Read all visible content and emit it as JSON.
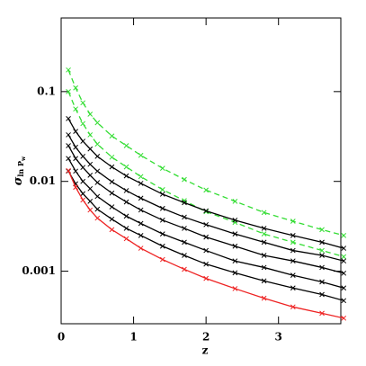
{
  "chart_data": {
    "type": "line",
    "xlabel": "z",
    "ylabel": "σ",
    "ylabel_sub": "ln P",
    "ylabel_subsub": "w",
    "log_y": true,
    "xlim": [
      0,
      3.86
    ],
    "xticks": [
      0,
      1,
      2,
      3
    ],
    "ylim": [
      0.00026,
      0.66
    ],
    "yticks": [
      0.001,
      0.01,
      0.1
    ],
    "x": [
      0.1,
      0.2,
      0.3,
      0.4,
      0.5,
      0.7,
      0.9,
      1.1,
      1.4,
      1.7,
      2.0,
      2.4,
      2.8,
      3.2,
      3.6,
      3.9
    ],
    "series": [
      {
        "color": "#33dd33",
        "linestyle": "dashed",
        "values": [
          0.174,
          0.11,
          0.075,
          0.056,
          0.045,
          0.032,
          0.025,
          0.0195,
          0.014,
          0.0105,
          0.008,
          0.006,
          0.0045,
          0.0036,
          0.0029,
          0.0025
        ]
      },
      {
        "color": "#33dd33",
        "linestyle": "dashed",
        "values": [
          0.1,
          0.064,
          0.044,
          0.033,
          0.026,
          0.0186,
          0.0145,
          0.0113,
          0.0081,
          0.0061,
          0.0046,
          0.0035,
          0.0026,
          0.0021,
          0.0017,
          0.00145
        ]
      },
      {
        "color": "#000000",
        "linestyle": "solid",
        "values": [
          0.05,
          0.036,
          0.028,
          0.023,
          0.019,
          0.0145,
          0.0115,
          0.0095,
          0.0072,
          0.0058,
          0.0047,
          0.0037,
          0.003,
          0.0025,
          0.0021,
          0.0018
        ]
      },
      {
        "color": "#000000",
        "linestyle": "solid",
        "values": [
          0.033,
          0.024,
          0.019,
          0.0155,
          0.013,
          0.0099,
          0.0079,
          0.0065,
          0.005,
          0.004,
          0.0033,
          0.0026,
          0.0021,
          0.0017,
          0.0015,
          0.0013
        ]
      },
      {
        "color": "#000000",
        "linestyle": "solid",
        "values": [
          0.025,
          0.018,
          0.0143,
          0.0117,
          0.0097,
          0.0074,
          0.0059,
          0.0048,
          0.0037,
          0.003,
          0.0024,
          0.0019,
          0.0015,
          0.0013,
          0.0011,
          0.00095
        ]
      },
      {
        "color": "#000000",
        "linestyle": "solid",
        "values": [
          0.018,
          0.013,
          0.01,
          0.0083,
          0.0068,
          0.0052,
          0.0041,
          0.0034,
          0.0026,
          0.0021,
          0.0017,
          0.0013,
          0.0011,
          0.0009,
          0.00076,
          0.00065
        ]
      },
      {
        "color": "#000000",
        "linestyle": "solid",
        "values": [
          0.013,
          0.0094,
          0.0073,
          0.006,
          0.0049,
          0.0038,
          0.003,
          0.0025,
          0.0019,
          0.0015,
          0.0012,
          0.00096,
          0.00078,
          0.00065,
          0.00055,
          0.00047
        ]
      },
      {
        "color": "#ee2222",
        "linestyle": "solid",
        "values": [
          0.0132,
          0.0086,
          0.0062,
          0.0048,
          0.0039,
          0.0029,
          0.0023,
          0.0018,
          0.00135,
          0.00105,
          0.00083,
          0.00064,
          0.0005,
          0.0004,
          0.00034,
          0.0003
        ]
      }
    ]
  }
}
